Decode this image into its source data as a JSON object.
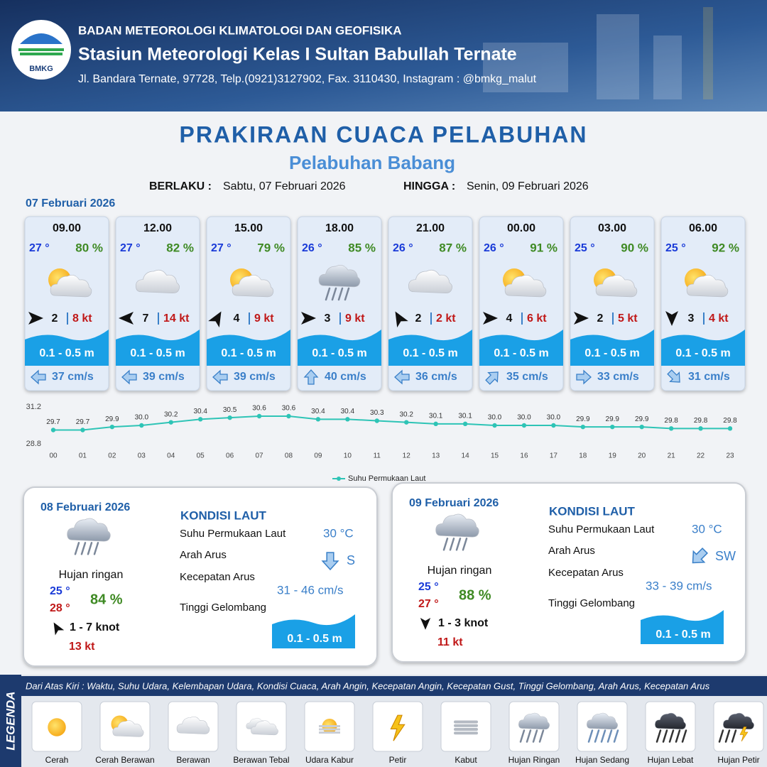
{
  "header": {
    "logo": "BMKG",
    "agency": "BADAN METEOROLOGI KLIMATOLOGI DAN GEOFISIKA",
    "station": "Stasiun Meteorologi Kelas I Sultan Babullah Ternate",
    "address": "Jl. Bandara Ternate, 97728, Telp.(0921)3127902, Fax. 3110430, Instagram : @bmkg_malut"
  },
  "title": "PRAKIRAAN CUACA PELABUHAN",
  "subtitle": "Pelabuhan Babang",
  "validity": {
    "from_label": "BERLAKU :",
    "from": "Sabtu, 07 Februari 2026",
    "to_label": "HINGGA :",
    "to": "Senin, 09 Februari 2026"
  },
  "day1": {
    "date": "07 Februari 2026",
    "forecasts": [
      {
        "time": "09.00",
        "temp": "27 °",
        "humidity": "80 %",
        "wind": "2",
        "gust": "8 kt",
        "wave": "0.1 - 0.5 m",
        "current": "37 cm/s"
      },
      {
        "time": "12.00",
        "temp": "27 °",
        "humidity": "82 %",
        "wind": "7",
        "gust": "14 kt",
        "wave": "0.1 - 0.5 m",
        "current": "39 cm/s"
      },
      {
        "time": "15.00",
        "temp": "27 °",
        "humidity": "79 %",
        "wind": "4",
        "gust": "9 kt",
        "wave": "0.1 - 0.5 m",
        "current": "39 cm/s"
      },
      {
        "time": "18.00",
        "temp": "26 °",
        "humidity": "85 %",
        "wind": "3",
        "gust": "9 kt",
        "wave": "0.1 - 0.5 m",
        "current": "40 cm/s"
      },
      {
        "time": "21.00",
        "temp": "26 °",
        "humidity": "87 %",
        "wind": "2",
        "gust": "2 kt",
        "wave": "0.1 - 0.5 m",
        "current": "36 cm/s"
      },
      {
        "time": "00.00",
        "temp": "26 °",
        "humidity": "91 %",
        "wind": "4",
        "gust": "6 kt",
        "wave": "0.1 - 0.5 m",
        "current": "35 cm/s"
      },
      {
        "time": "03.00",
        "temp": "25 °",
        "humidity": "90 %",
        "wind": "2",
        "gust": "5 kt",
        "wave": "0.1 - 0.5 m",
        "current": "33 cm/s"
      },
      {
        "time": "06.00",
        "temp": "25 °",
        "humidity": "92 %",
        "wind": "3",
        "gust": "4 kt",
        "wave": "0.1 - 0.5 m",
        "current": "31 cm/s"
      }
    ]
  },
  "chart_data": {
    "type": "line",
    "legend": "Suhu Permukaan Laut",
    "color": "#2ec4b6",
    "categories": [
      "00",
      "01",
      "02",
      "03",
      "04",
      "05",
      "06",
      "07",
      "08",
      "09",
      "10",
      "11",
      "12",
      "13",
      "14",
      "15",
      "16",
      "17",
      "18",
      "19",
      "20",
      "21",
      "22",
      "23"
    ],
    "values": [
      29.7,
      29.7,
      29.9,
      30.0,
      30.2,
      30.4,
      30.5,
      30.6,
      30.6,
      30.4,
      30.4,
      30.3,
      30.2,
      30.1,
      30.1,
      30.0,
      30.0,
      30.0,
      29.9,
      29.9,
      29.9,
      29.8,
      29.8,
      29.8
    ],
    "value_labels": [
      "29.7",
      "29.7",
      "29.9",
      "30.0",
      "30.2",
      "30.4",
      "30.5",
      "30.6",
      "30.6",
      "30.4",
      "30.4",
      "30.3",
      "30.2",
      "30.1",
      "30.1",
      "30.0",
      "30.0",
      "30.0",
      "29.9",
      "29.9",
      "29.9",
      "29.8",
      "29.8",
      "29.8"
    ],
    "ylim": [
      28.8,
      31.2
    ],
    "yticks": [
      28.8,
      31.2
    ]
  },
  "outlook": [
    {
      "date": "08 Februari 2026",
      "condition": "Hujan ringan",
      "temp_min": "25 °",
      "temp_max": "28 °",
      "humidity": "84 %",
      "wind": "1 - 7 knot",
      "gust": "13 kt",
      "sea_title": "KONDISI LAUT",
      "sst_label": "Suhu Permukaan Laut",
      "sst": "30 °C",
      "current_dir_label": "Arah Arus",
      "current_dir": "S",
      "current_speed_label": "Kecepatan Arus",
      "current_speed": "31  - 46 cm/s",
      "wave_label": "Tinggi Gelombang",
      "wave": "0.1 - 0.5 m"
    },
    {
      "date": "09 Februari 2026",
      "condition": "Hujan ringan",
      "temp_min": "25 °",
      "temp_max": "27 °",
      "humidity": "88 %",
      "wind": "1 - 3 knot",
      "gust": "11 kt",
      "sea_title": "KONDISI LAUT",
      "sst_label": "Suhu Permukaan Laut",
      "sst": "30 °C",
      "current_dir_label": "Arah Arus",
      "current_dir": "SW",
      "current_speed_label": "Kecepatan Arus",
      "current_speed": "33  - 39 cm/s",
      "wave_label": "Tinggi Gelombang",
      "wave": "0.1 - 0.5 m"
    }
  ],
  "legend": {
    "title": "LEGENDA",
    "description": "Dari Atas Kiri : Waktu, Suhu Udara, Kelembapan Udara, Kondisi Cuaca, Arah Angin, Kecepatan Angin, Kecepatan Gust, Tinggi Gelombang, Arah Arus, Kecepatan Arus",
    "items": [
      "Cerah",
      "Cerah Berawan",
      "Berawan",
      "Berawan Tebal",
      "Udara Kabur",
      "Petir",
      "Kabut",
      "Hujan Ringan",
      "Hujan Sedang",
      "Hujan Lebat",
      "Hujan Petir"
    ]
  }
}
